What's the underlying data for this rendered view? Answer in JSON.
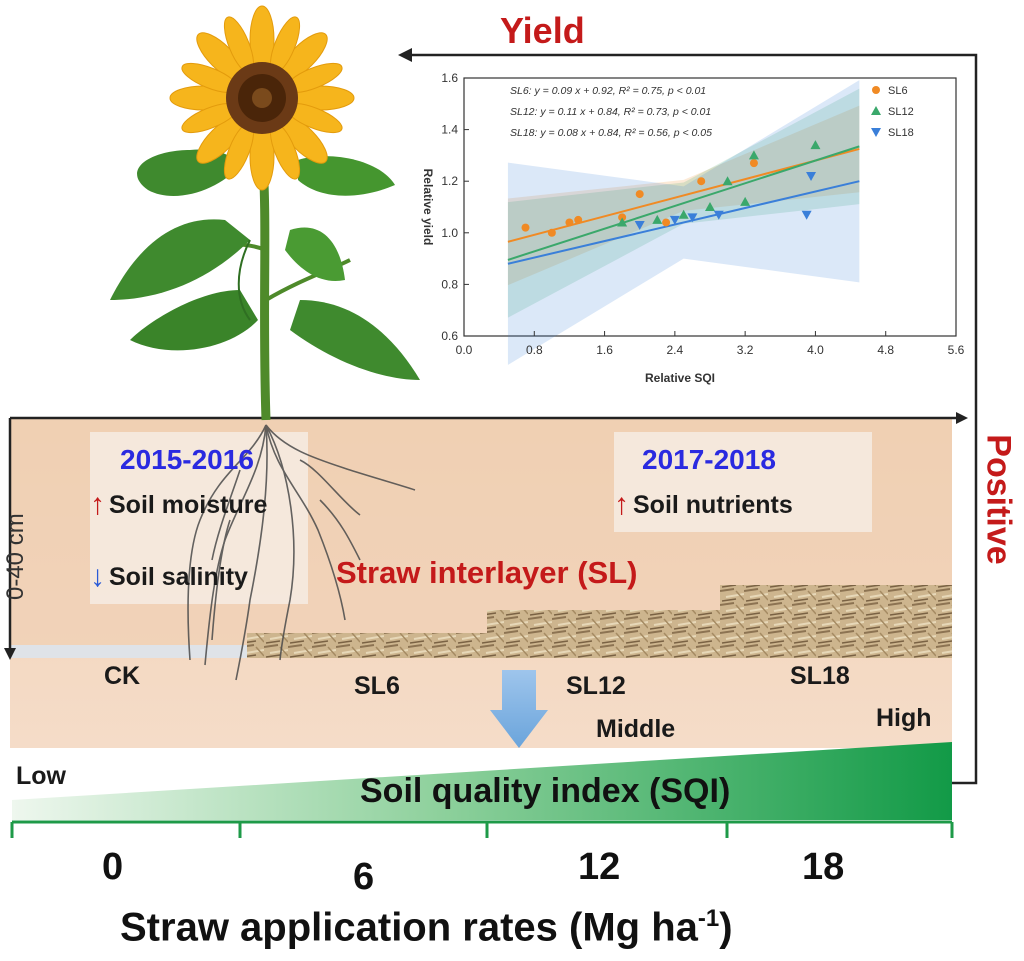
{
  "title_yield": "Yield",
  "title_positive": "Positive",
  "periods": {
    "early": {
      "years": "2015-2016",
      "factors": [
        {
          "direction": "up",
          "label": "Soil moisture"
        },
        {
          "direction": "down",
          "label": "Soil salinity"
        }
      ]
    },
    "late": {
      "years": "2017-2018",
      "factors": [
        {
          "direction": "up",
          "label": "Soil nutrients"
        }
      ]
    }
  },
  "depth_label": "0-40 cm",
  "interlayer_label": "Straw interlayer (SL)",
  "treatments": [
    "CK",
    "SL6",
    "SL12",
    "SL18"
  ],
  "sqi_levels": {
    "low": "Low",
    "middle": "Middle",
    "high": "High"
  },
  "sqi_label": "Soil quality index (SQI)",
  "rates": [
    "0",
    "6",
    "12",
    "18"
  ],
  "x_axis_title_main": "Straw application rates (Mg ha",
  "x_axis_title_sup": "-1",
  "x_axis_title_end": ")",
  "colors": {
    "accent_red": "#c41a1a",
    "year_blue": "#2a2ae0",
    "sqi_green": "#1e9a48",
    "soil": "#efcdb0"
  },
  "chart_data": {
    "type": "scatter",
    "xlabel": "Relative SQI",
    "ylabel": "Relative yield",
    "xlim": [
      0.0,
      5.6
    ],
    "ylim": [
      0.6,
      1.6
    ],
    "xticks": [
      "0.0",
      "0.8",
      "1.6",
      "2.4",
      "3.2",
      "4.0",
      "4.8",
      "5.6"
    ],
    "yticks": [
      "0.6",
      "0.8",
      "1.0",
      "1.2",
      "1.4",
      "1.6"
    ],
    "legend_position": "top-right",
    "equations": [
      "SL6: y = 0.09 x + 0.92, R² = 0.75, p < 0.01",
      "SL12: y = 0.11 x + 0.84, R² = 0.73, p < 0.01",
      "SL18: y = 0.08 x + 0.84, R² = 0.56, p < 0.05"
    ],
    "series": [
      {
        "name": "SL6",
        "color": "#f08a24",
        "marker": "circle",
        "slope": 0.09,
        "intercept": 0.92,
        "fit_range": [
          0.5,
          4.5
        ],
        "band": 0.06,
        "points": [
          [
            0.7,
            1.02
          ],
          [
            1.0,
            1.0
          ],
          [
            1.2,
            1.04
          ],
          [
            1.3,
            1.05
          ],
          [
            1.8,
            1.06
          ],
          [
            2.0,
            1.15
          ],
          [
            2.3,
            1.04
          ],
          [
            2.7,
            1.2
          ],
          [
            3.3,
            1.27
          ]
        ]
      },
      {
        "name": "SL12",
        "color": "#3aa86b",
        "marker": "triangle-up",
        "slope": 0.11,
        "intercept": 0.84,
        "fit_range": [
          0.5,
          4.5
        ],
        "band": 0.08,
        "points": [
          [
            1.8,
            1.04
          ],
          [
            2.2,
            1.05
          ],
          [
            2.5,
            1.07
          ],
          [
            2.8,
            1.1
          ],
          [
            3.0,
            1.2
          ],
          [
            3.2,
            1.12
          ],
          [
            3.3,
            1.3
          ],
          [
            4.0,
            1.34
          ]
        ]
      },
      {
        "name": "SL18",
        "color": "#3a7fd9",
        "marker": "triangle-down",
        "slope": 0.08,
        "intercept": 0.84,
        "fit_range": [
          0.5,
          4.5
        ],
        "band": 0.14,
        "points": [
          [
            2.0,
            1.03
          ],
          [
            2.4,
            1.05
          ],
          [
            2.6,
            1.06
          ],
          [
            2.9,
            1.07
          ],
          [
            3.9,
            1.07
          ],
          [
            3.95,
            1.22
          ]
        ]
      }
    ]
  }
}
